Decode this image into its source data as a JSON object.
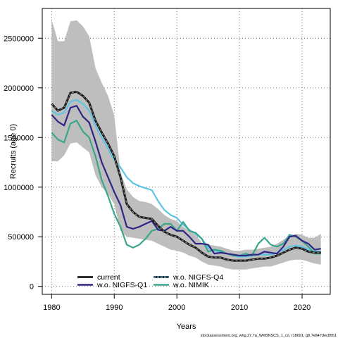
{
  "chart_data": {
    "type": "line",
    "xlabel": "Years",
    "ylabel": "Recruits (age 0)",
    "xlim": [
      1978.5,
      2024.5
    ],
    "ylim": [
      -80000,
      2800000
    ],
    "x_ticks": [
      1980,
      1990,
      2000,
      2010,
      2020
    ],
    "y_ticks": [
      0,
      500000,
      1000000,
      1500000,
      2000000,
      2500000
    ],
    "grid": "dotted",
    "legend_position": "bottom-left",
    "credit": "stockassessment.org, whg.27.7a_WKBNSCS_1_co, r18691, g8.7e847dec8551",
    "colors": {
      "band": "#bebebe",
      "current": "#1a1a1a",
      "nigfs_q1": "#2e2585",
      "nigfs_q4": "#5ec4e3",
      "nimik": "#3aa68c"
    },
    "years": [
      1980,
      1981,
      1982,
      1983,
      1984,
      1985,
      1986,
      1987,
      1988,
      1989,
      1990,
      1991,
      1992,
      1993,
      1994,
      1995,
      1996,
      1997,
      1998,
      1999,
      2000,
      2001,
      2002,
      2003,
      2004,
      2005,
      2006,
      2007,
      2008,
      2009,
      2010,
      2011,
      2012,
      2013,
      2014,
      2015,
      2016,
      2017,
      2018,
      2019,
      2020,
      2021,
      2022,
      2023
    ],
    "confidence_band": {
      "upper": [
        2690000,
        2470000,
        2470000,
        2670000,
        2680000,
        2620000,
        2520000,
        2200000,
        2050000,
        1920000,
        1720000,
        1150000,
        980000,
        900000,
        860000,
        850000,
        830000,
        780000,
        720000,
        680000,
        660000,
        600000,
        560000,
        520000,
        440000,
        420000,
        410000,
        400000,
        380000,
        360000,
        360000,
        370000,
        370000,
        380000,
        390000,
        400000,
        430000,
        470000,
        510000,
        530000,
        520000,
        490000,
        490000,
        530000
      ],
      "lower": [
        1260000,
        1260000,
        1320000,
        1440000,
        1450000,
        1400000,
        1350000,
        1120000,
        1000000,
        930000,
        830000,
        560000,
        500000,
        490000,
        480000,
        470000,
        460000,
        430000,
        400000,
        370000,
        360000,
        340000,
        310000,
        290000,
        250000,
        220000,
        210000,
        200000,
        180000,
        170000,
        170000,
        170000,
        180000,
        190000,
        200000,
        200000,
        220000,
        240000,
        260000,
        270000,
        270000,
        250000,
        230000,
        220000
      ]
    },
    "series": [
      {
        "name": "current",
        "key": "current",
        "style": "solid-black",
        "values": [
          1840000,
          1770000,
          1800000,
          1950000,
          1960000,
          1920000,
          1850000,
          1670000,
          1550000,
          1440000,
          1310000,
          1100000,
          830000,
          750000,
          700000,
          690000,
          680000,
          610000,
          550000,
          520000,
          500000,
          460000,
          420000,
          390000,
          340000,
          300000,
          290000,
          290000,
          270000,
          260000,
          260000,
          260000,
          270000,
          280000,
          280000,
          290000,
          310000,
          340000,
          370000,
          390000,
          380000,
          350000,
          340000,
          340000
        ]
      },
      {
        "name": "w.o. NIGFS-Q1",
        "key": "nigfs_q1",
        "style": "solid",
        "values": [
          1730000,
          1660000,
          1620000,
          1800000,
          1820000,
          1710000,
          1650000,
          1460000,
          1250000,
          1100000,
          950000,
          820000,
          600000,
          580000,
          600000,
          630000,
          660000,
          570000,
          560000,
          600000,
          560000,
          560000,
          500000,
          430000,
          430000,
          420000,
          330000,
          340000,
          330000,
          320000,
          310000,
          310000,
          320000,
          320000,
          350000,
          340000,
          330000,
          400000,
          500000,
          510000,
          460000,
          430000,
          370000,
          380000
        ]
      },
      {
        "name": "w.o. NIGFS-Q4",
        "key": "nigfs_q4",
        "style": "solid",
        "values": [
          1770000,
          1730000,
          1750000,
          1860000,
          1880000,
          1840000,
          1770000,
          1620000,
          1500000,
          1390000,
          1270000,
          1200000,
          1100000,
          1040000,
          1010000,
          990000,
          970000,
          860000,
          770000,
          720000,
          690000,
          620000,
          570000,
          530000,
          480000,
          390000,
          360000,
          350000,
          330000,
          310000,
          300000,
          300000,
          310000,
          320000,
          320000,
          320000,
          340000,
          370000,
          400000,
          410000,
          400000,
          370000,
          350000,
          350000
        ]
      },
      {
        "name": "w.o. NIMIK",
        "key": "nimik",
        "style": "solid",
        "values": [
          1550000,
          1480000,
          1450000,
          1640000,
          1670000,
          1560000,
          1500000,
          1310000,
          1070000,
          910000,
          730000,
          600000,
          420000,
          390000,
          420000,
          480000,
          560000,
          580000,
          630000,
          630000,
          560000,
          650000,
          560000,
          540000,
          480000,
          350000,
          370000,
          360000,
          330000,
          310000,
          310000,
          330000,
          310000,
          430000,
          490000,
          420000,
          400000,
          430000,
          520000,
          500000,
          460000,
          400000,
          330000,
          330000
        ]
      }
    ],
    "legend": [
      {
        "label": "current",
        "key": "current"
      },
      {
        "label": "w.o. NIGFS-Q1",
        "key": "nigfs_q1"
      },
      {
        "label": "w.o. NIGFS-Q4",
        "key": "nigfs_q4"
      },
      {
        "label": "w.o. NIMIK",
        "key": "nimik"
      }
    ]
  }
}
